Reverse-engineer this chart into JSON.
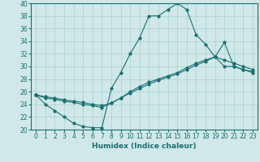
{
  "xlabel": "Humidex (Indice chaleur)",
  "xlim": [
    -0.5,
    23.5
  ],
  "ylim": [
    20,
    40
  ],
  "xticks": [
    0,
    1,
    2,
    3,
    4,
    5,
    6,
    7,
    8,
    9,
    10,
    11,
    12,
    13,
    14,
    15,
    16,
    17,
    18,
    19,
    20,
    21,
    22,
    23
  ],
  "yticks": [
    20,
    22,
    24,
    26,
    28,
    30,
    32,
    34,
    36,
    38,
    40
  ],
  "bg_color": "#d0e8e8",
  "grid_color": "#aacfcf",
  "line_color": "#1a7070",
  "line1_x": [
    0,
    1,
    2,
    3,
    4,
    5,
    6,
    7,
    8,
    9,
    10,
    11,
    12,
    13,
    14,
    15,
    16,
    17,
    18,
    19,
    20,
    21,
    22,
    23
  ],
  "line1_y": [
    25.5,
    24.0,
    23.0,
    22.0,
    21.0,
    20.5,
    20.3,
    20.3,
    26.5,
    29.0,
    32.0,
    34.5,
    38.0,
    38.0,
    39.0,
    40.0,
    39.0,
    35.0,
    33.5,
    31.5,
    30.0,
    30.0,
    29.5,
    29.0
  ],
  "line2_x": [
    0,
    1,
    2,
    3,
    4,
    5,
    6,
    7,
    8,
    9,
    10,
    11,
    12,
    13,
    14,
    15,
    16,
    17,
    18,
    19,
    20,
    21,
    22,
    23
  ],
  "line2_y": [
    25.5,
    25.0,
    24.8,
    24.5,
    24.3,
    24.0,
    23.8,
    23.5,
    24.2,
    25.0,
    26.0,
    26.8,
    27.5,
    28.0,
    28.5,
    29.0,
    29.8,
    30.5,
    31.0,
    31.5,
    31.0,
    30.5,
    30.0,
    29.5
  ],
  "line3_x": [
    0,
    1,
    2,
    3,
    4,
    5,
    6,
    7,
    8,
    9,
    10,
    11,
    12,
    13,
    14,
    15,
    16,
    17,
    18,
    19,
    20,
    21,
    22,
    23
  ],
  "line3_y": [
    25.5,
    25.2,
    25.0,
    24.7,
    24.5,
    24.3,
    24.0,
    23.8,
    24.2,
    25.0,
    25.8,
    26.5,
    27.2,
    27.8,
    28.3,
    28.8,
    29.5,
    30.2,
    30.8,
    31.5,
    33.8,
    30.0,
    29.5,
    29.2
  ]
}
